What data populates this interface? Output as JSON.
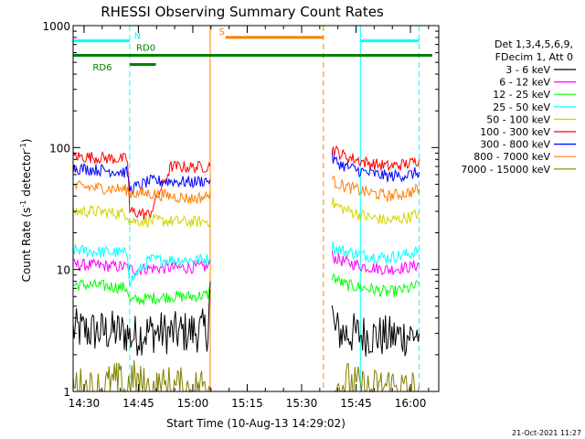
{
  "chart_data": {
    "type": "line",
    "title": "RHESSI Observing Summary Count Rates",
    "xlabel": "Start Time (10-Aug-13 14:29:02)",
    "ylabel_main": "Count Rate (s",
    "ylabel_sup1": "-1",
    "ylabel_mid": " detector",
    "ylabel_sup2": "-1",
    "ylabel_end": ")",
    "yscale": "log",
    "ylim": [
      1,
      1000
    ],
    "xlim": [
      14.45,
      16.13
    ],
    "x_ticks": [
      {
        "value": 14.5,
        "label": "14:30"
      },
      {
        "value": 14.75,
        "label": "14:45"
      },
      {
        "value": 15.0,
        "label": "15:00"
      },
      {
        "value": 15.25,
        "label": "15:15"
      },
      {
        "value": 15.5,
        "label": "15:30"
      },
      {
        "value": 15.75,
        "label": "15:45"
      },
      {
        "value": 16.0,
        "label": "16:00"
      }
    ],
    "y_ticks": [
      {
        "value": 1,
        "label": "1"
      },
      {
        "value": 10,
        "label": "10"
      },
      {
        "value": 100,
        "label": "100"
      },
      {
        "value": 1000,
        "label": "1000"
      }
    ],
    "legend_header": [
      "Det 1,3,4,5,6,9,",
      "FDecim 1, Att 0"
    ],
    "legend_position": "right",
    "timestamp": "21-Oct-2021 11:27",
    "series": [
      {
        "name": "3 - 6 keV",
        "color": "#000000",
        "segments": [
          {
            "x": [
              14.45,
              14.55,
              14.65,
              14.7,
              14.71,
              14.8,
              14.9,
              15.0,
              15.07,
              15.08
            ],
            "y": [
              3.2,
              3.1,
              3.1,
              3.0,
              2.8,
              3.1,
              3.0,
              3.1,
              3.2,
              8.0
            ]
          },
          {
            "x": [
              15.64,
              15.65,
              15.7,
              15.8,
              15.9,
              16.0,
              16.04
            ],
            "y": [
              4.5,
              3.2,
              3.0,
              2.9,
              2.8,
              2.9,
              3.0
            ]
          }
        ]
      },
      {
        "name": "6 - 12 keV",
        "color": "#ff00ff",
        "segments": [
          {
            "x": [
              14.45,
              14.55,
              14.65,
              14.7,
              14.71,
              14.8,
              14.9,
              15.0,
              15.07,
              15.08
            ],
            "y": [
              11.0,
              10.8,
              10.6,
              10.5,
              10.0,
              10.2,
              10.3,
              10.4,
              10.5,
              12.0
            ]
          },
          {
            "x": [
              15.64,
              15.65,
              15.7,
              15.8,
              15.9,
              16.0,
              16.04
            ],
            "y": [
              13.0,
              12.5,
              11.5,
              10.5,
              10.0,
              10.5,
              11.0
            ]
          }
        ]
      },
      {
        "name": "12 - 25 keV",
        "color": "#00ff00",
        "segments": [
          {
            "x": [
              14.45,
              14.55,
              14.65,
              14.7,
              14.71,
              14.8,
              14.9,
              15.0,
              15.07,
              15.08
            ],
            "y": [
              7.5,
              7.4,
              7.2,
              7.0,
              5.5,
              5.8,
              6.0,
              6.0,
              6.2,
              7.0
            ]
          },
          {
            "x": [
              15.64,
              15.65,
              15.7,
              15.8,
              15.9,
              16.0,
              16.04
            ],
            "y": [
              9.0,
              8.5,
              7.5,
              7.0,
              6.5,
              7.0,
              7.5
            ]
          }
        ]
      },
      {
        "name": "25 - 50 keV",
        "color": "#00ffff",
        "segments": [
          {
            "x": [
              14.45,
              14.55,
              14.65,
              14.7,
              14.71,
              14.8,
              14.9,
              15.0,
              15.07,
              15.08
            ],
            "y": [
              14.5,
              14.0,
              13.8,
              13.5,
              8.0,
              12.0,
              12.0,
              12.0,
              12.2,
              12.5
            ]
          },
          {
            "x": [
              15.64,
              15.65,
              15.7,
              15.8,
              15.9,
              16.0,
              16.04
            ],
            "y": [
              16.0,
              15.0,
              14.0,
              13.0,
              12.5,
              13.5,
              14.5
            ]
          }
        ]
      },
      {
        "name": "50 - 100 keV",
        "color": "#d4d400",
        "segments": [
          {
            "x": [
              14.45,
              14.55,
              14.65,
              14.7,
              14.71,
              14.8,
              14.9,
              15.0,
              15.07,
              15.08
            ],
            "y": [
              30.0,
              30.0,
              29.0,
              28.5,
              25.0,
              25.0,
              25.0,
              24.5,
              25.0,
              25.0
            ]
          },
          {
            "x": [
              15.64,
              15.65,
              15.7,
              15.8,
              15.9,
              16.0,
              16.04
            ],
            "y": [
              36.0,
              34.0,
              31.0,
              27.0,
              25.0,
              27.0,
              29.0
            ]
          }
        ]
      },
      {
        "name": "100 - 300 keV",
        "color": "#ff0000",
        "segments": [
          {
            "x": [
              14.45,
              14.55,
              14.65,
              14.7,
              14.71,
              14.8,
              14.9,
              15.0,
              15.07,
              15.08
            ],
            "y": [
              85.0,
              83.0,
              81.0,
              80.0,
              30.0,
              28.0,
              70.0,
              69.0,
              70.0,
              70.0
            ]
          },
          {
            "x": [
              15.64,
              15.65,
              15.7,
              15.8,
              15.9,
              16.0,
              16.04
            ],
            "y": [
              100.0,
              95.0,
              85.0,
              75.0,
              70.0,
              74.0,
              80.0
            ]
          }
        ]
      },
      {
        "name": "300 - 800 keV",
        "color": "#0000ff",
        "segments": [
          {
            "x": [
              14.45,
              14.55,
              14.65,
              14.7,
              14.71,
              14.8,
              14.9,
              15.0,
              15.07,
              15.08
            ],
            "y": [
              68.0,
              66.0,
              64.0,
              62.0,
              45.0,
              53.0,
              53.0,
              52.0,
              54.0,
              55.0
            ]
          },
          {
            "x": [
              15.64,
              15.65,
              15.7,
              15.8,
              15.9,
              16.0,
              16.04
            ],
            "y": [
              82.0,
              78.0,
              70.0,
              62.0,
              58.0,
              60.0,
              63.0
            ]
          }
        ]
      },
      {
        "name": "800 - 7000 keV",
        "color": "#ff8000",
        "segments": [
          {
            "x": [
              14.45,
              14.55,
              14.65,
              14.7,
              14.71,
              14.8,
              14.9,
              15.0,
              15.07,
              15.08
            ],
            "y": [
              48.0,
              47.0,
              46.0,
              45.0,
              42.0,
              42.0,
              40.0,
              38.0,
              40.0,
              45.0
            ]
          },
          {
            "x": [
              15.64,
              15.65,
              15.7,
              15.8,
              15.9,
              16.0,
              16.04
            ],
            "y": [
              55.0,
              52.0,
              48.0,
              43.0,
              40.0,
              43.0,
              46.0
            ]
          }
        ]
      },
      {
        "name": "7000 - 15000 keV",
        "color": "#808000",
        "segments": [
          {
            "x": [
              14.45,
              14.55,
              14.65,
              14.7,
              14.71,
              14.8,
              14.9,
              15.0,
              15.07,
              15.08
            ],
            "y": [
              1.1,
              1.0,
              1.2,
              1.0,
              1.3,
              1.0,
              1.1,
              1.0,
              1.2,
              1.0
            ]
          },
          {
            "x": [
              15.64,
              15.65,
              15.7,
              15.8,
              15.9,
              16.0,
              16.04
            ],
            "y": [
              1.1,
              1.0,
              1.2,
              1.0,
              1.1,
              1.0,
              1.1
            ]
          }
        ]
      }
    ],
    "state_bars": [
      {
        "label": "N",
        "color": "#00ffff",
        "x_start": 14.45,
        "x_end": 14.71,
        "level": 750
      },
      {
        "label": "N",
        "color": "#00ffff",
        "x_start": 15.77,
        "x_end": 16.04,
        "level": 750
      },
      {
        "label": "S",
        "color": "#ff8000",
        "x_start": 15.15,
        "x_end": 15.6,
        "level": 800
      },
      {
        "label": "RD0",
        "color": "#008000",
        "x_start": 14.45,
        "x_end": 16.1,
        "level": 570
      },
      {
        "label": "RD6",
        "color": "#008000",
        "x_start": 14.71,
        "x_end": 14.83,
        "level": 480
      }
    ],
    "vlines": [
      {
        "x": 14.45,
        "color": "#00ffff",
        "style": "solid"
      },
      {
        "x": 14.71,
        "color": "#00ffff",
        "style": "dashed"
      },
      {
        "x": 15.08,
        "color": "#ff8000",
        "style": "solid"
      },
      {
        "x": 15.6,
        "color": "#ff8000",
        "style": "dashed"
      },
      {
        "x": 15.77,
        "color": "#00ffff",
        "style": "solid"
      },
      {
        "x": 16.04,
        "color": "#00ffff",
        "style": "dashed"
      }
    ]
  }
}
